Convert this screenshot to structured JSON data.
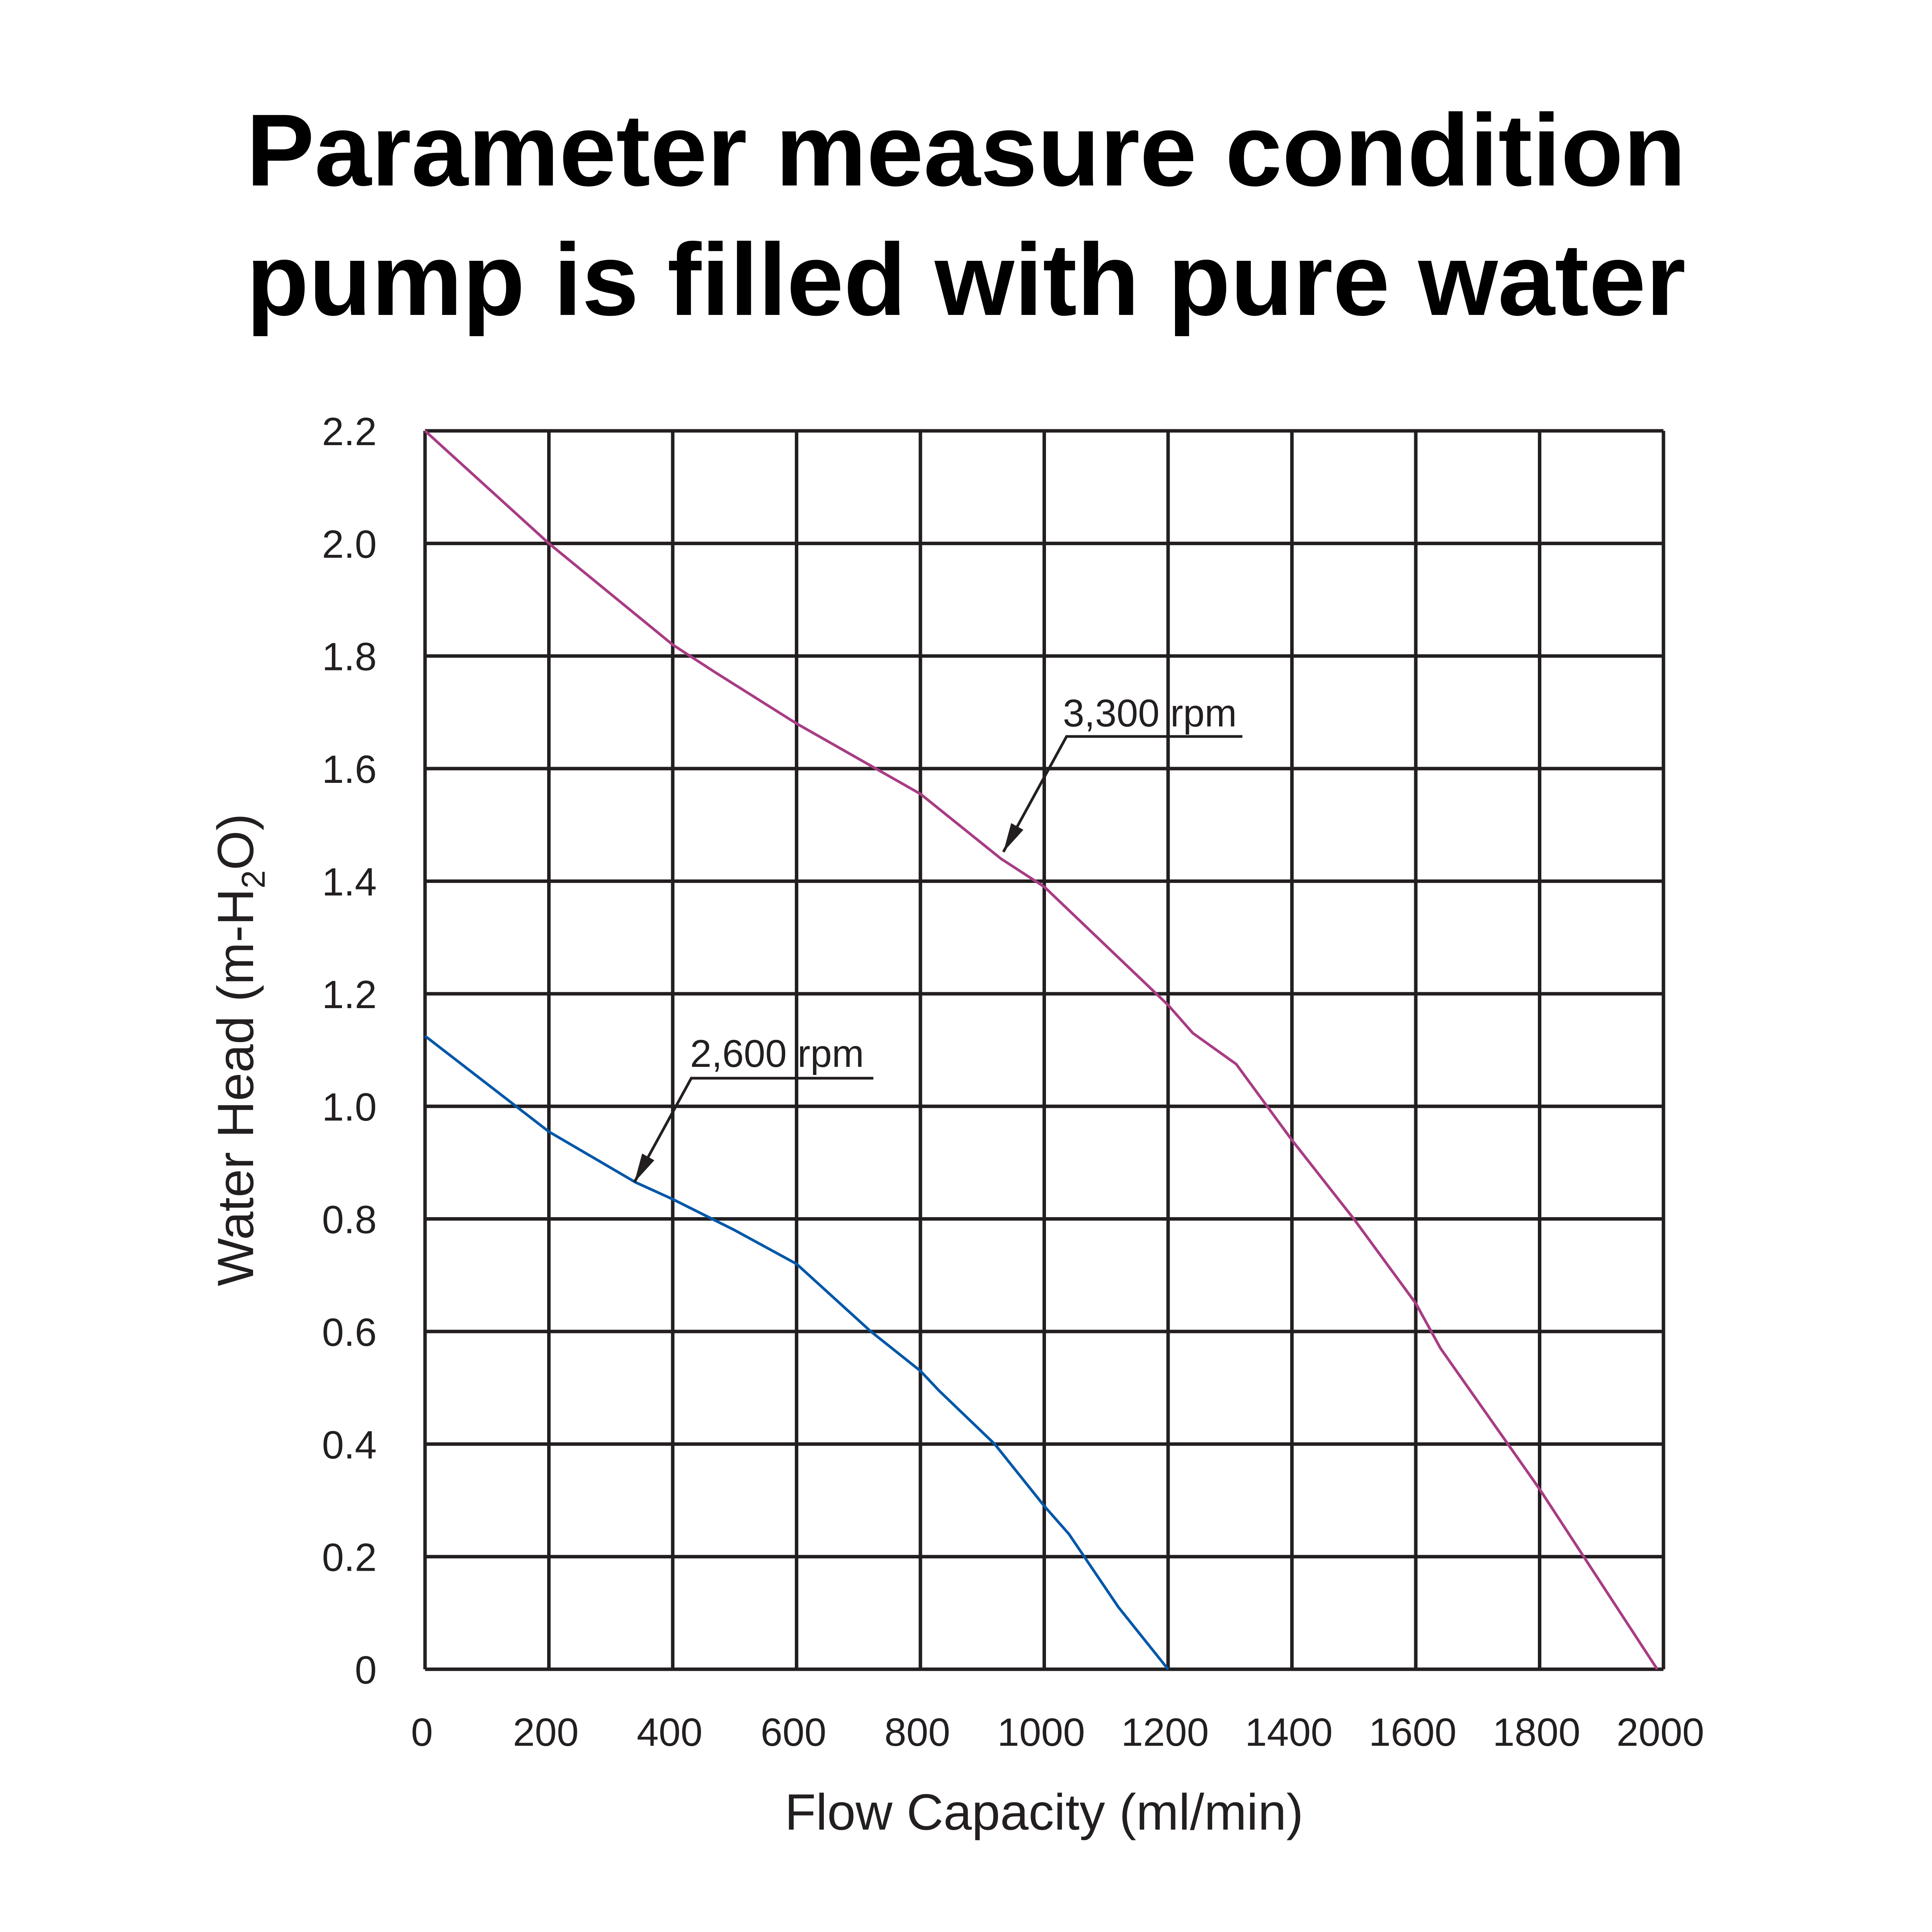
{
  "chart_data": {
    "type": "line",
    "title": [
      "Parameter measure condition",
      "pump is filled with pure water"
    ],
    "xlabel": "Flow Capacity (ml/min)",
    "ylabel": "Water Head (m-H2O)",
    "ylabel_parts": {
      "pre": "Water Head (m-H",
      "sub": "2",
      "post": "O)"
    },
    "xlim": [
      0,
      2000
    ],
    "ylim": [
      0,
      2.2
    ],
    "grid": true,
    "xticks": [
      0,
      200,
      400,
      600,
      800,
      1000,
      1200,
      1400,
      1600,
      1800,
      2000
    ],
    "xtick_labels": [
      "0",
      "200",
      "400",
      "600",
      "800",
      "1000",
      "1200",
      "1400",
      "1600",
      "1800",
      "2000"
    ],
    "yticks": [
      0,
      0.2,
      0.4,
      0.6,
      0.8,
      1.0,
      1.2,
      1.4,
      1.6,
      1.8,
      2.0,
      2.2
    ],
    "ytick_labels": [
      "0",
      "0.2",
      "0.4",
      "0.6",
      "0.8",
      "1.0",
      "1.2",
      "1.4",
      "1.6",
      "1.8",
      "2.0",
      "2.2"
    ],
    "series": [
      {
        "name": "3,300 rpm",
        "color": "#a83c84",
        "x": [
          0,
          200,
          400,
          470,
          600,
          800,
          930,
          1000,
          1200,
          1240,
          1310,
          1400,
          1500,
          1600,
          1640,
          1800,
          1990
        ],
        "y": [
          2.2,
          2.0,
          1.82,
          1.77,
          1.68,
          1.555,
          1.44,
          1.39,
          1.18,
          1.13,
          1.075,
          0.94,
          0.8,
          0.65,
          0.57,
          0.32,
          0
        ],
        "annotation": {
          "label_x": 1030,
          "label_y": 1.675,
          "leader": [
            [
              1320,
              1.657
            ],
            [
              1036,
              1.657
            ],
            [
              934,
              1.452
            ]
          ]
        }
      },
      {
        "name": "2,600 rpm",
        "color": "#0057a8",
        "x": [
          0,
          100,
          200,
          340,
          400,
          500,
          600,
          630,
          720,
          800,
          830,
          920,
          1000,
          1040,
          1120,
          1200
        ],
        "y": [
          1.125,
          1.04,
          0.955,
          0.865,
          0.835,
          0.78,
          0.72,
          0.69,
          0.6,
          0.53,
          0.495,
          0.4,
          0.29,
          0.24,
          0.11,
          0
        ],
        "annotation": {
          "label_x": 428,
          "label_y": 1.07,
          "leader": [
            [
              724,
              1.05
            ],
            [
              430,
              1.05
            ],
            [
              338,
              0.865
            ]
          ]
        }
      }
    ]
  }
}
